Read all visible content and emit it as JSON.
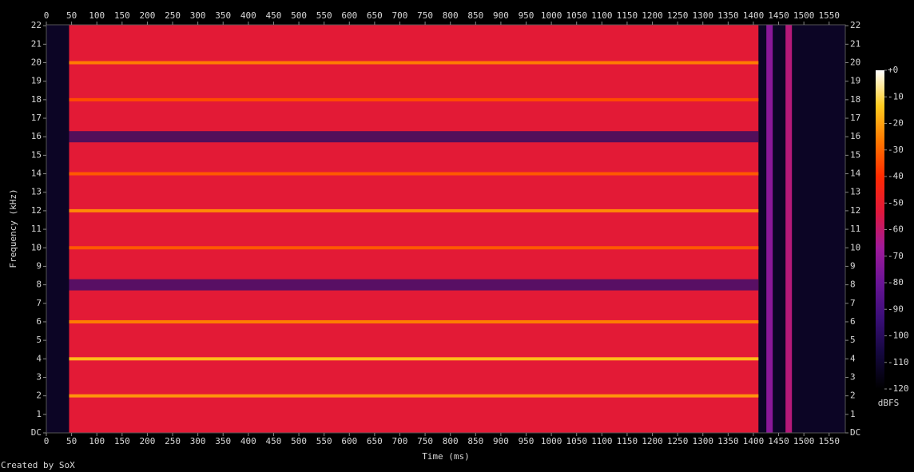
{
  "chart_data": {
    "type": "spectrogram",
    "x_label": "Time (ms)",
    "y_label": "Frequency (kHz)",
    "colorbar_label": "dBFS",
    "credit": "Created by SoX",
    "xlim": [
      0,
      1582
    ],
    "xticks": [
      0,
      50,
      100,
      150,
      200,
      250,
      300,
      350,
      400,
      450,
      500,
      550,
      600,
      650,
      700,
      750,
      800,
      850,
      900,
      950,
      1000,
      1050,
      1100,
      1150,
      1200,
      1250,
      1300,
      1350,
      1400,
      1450,
      1500,
      1550
    ],
    "ylim": [
      0,
      22.05
    ],
    "yticks": [
      {
        "value": 0,
        "label": "DC"
      },
      1,
      2,
      3,
      4,
      5,
      6,
      7,
      8,
      9,
      10,
      11,
      12,
      13,
      14,
      15,
      16,
      17,
      18,
      19,
      20,
      21,
      22
    ],
    "zlim": [
      -120,
      0
    ],
    "zticks": [
      {
        "value": 0,
        "label": "+0"
      },
      -10,
      -20,
      -30,
      -40,
      -50,
      -60,
      -70,
      -80,
      -90,
      -100,
      -110,
      -120
    ],
    "colormap": [
      "#000000",
      "#14083e",
      "#3a0e78",
      "#6a1496",
      "#a01a9a",
      "#e0183c",
      "#ff2a00",
      "#ff7800",
      "#ffcc20",
      "#ffffff"
    ],
    "background_level": -112,
    "signal": {
      "start": 45,
      "end": 1410,
      "level": -52
    },
    "bands": [
      {
        "frequency": 2,
        "level": -22
      },
      {
        "frequency": 4,
        "level": -16
      },
      {
        "frequency": 6,
        "level": -26
      },
      {
        "frequency": 8,
        "level": -95
      },
      {
        "frequency": 10,
        "level": -32
      },
      {
        "frequency": 12,
        "level": -24
      },
      {
        "frequency": 14,
        "level": -32
      },
      {
        "frequency": 16,
        "level": -98
      },
      {
        "frequency": 18,
        "level": -34
      },
      {
        "frequency": 20,
        "level": -26
      }
    ],
    "clicks": [
      {
        "time": 1432,
        "level": -72
      },
      {
        "time": 1470,
        "level": -62
      }
    ]
  }
}
